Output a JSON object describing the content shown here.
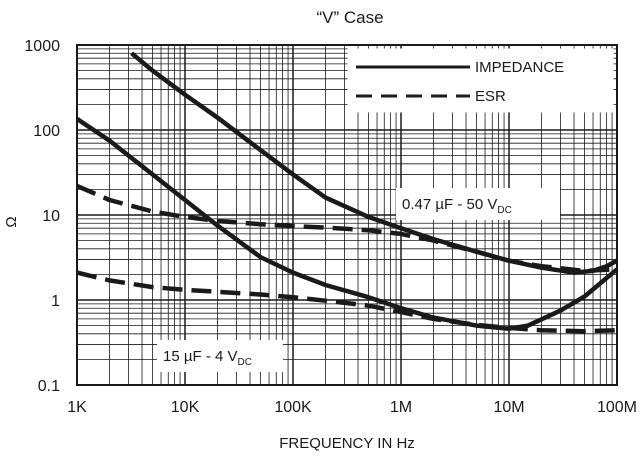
{
  "chart_data": {
    "type": "line",
    "title": "“V” Case",
    "xlabel": "FREQUENCY IN Hz",
    "ylabel": "Ω",
    "x_scale": "log",
    "y_scale": "log",
    "xlim": [
      1000,
      100000000
    ],
    "ylim": [
      0.1,
      1000
    ],
    "grid": true,
    "legend_position": "top-right",
    "x_ticks": [
      {
        "value": 1000,
        "label": "1K"
      },
      {
        "value": 10000,
        "label": "10K"
      },
      {
        "value": 100000,
        "label": "100K"
      },
      {
        "value": 1000000,
        "label": "1M"
      },
      {
        "value": 10000000,
        "label": "10M"
      },
      {
        "value": 100000000,
        "label": "100M"
      }
    ],
    "y_ticks": [
      {
        "value": 0.1,
        "label": "0.1"
      },
      {
        "value": 1,
        "label": "1"
      },
      {
        "value": 10,
        "label": "10"
      },
      {
        "value": 100,
        "label": "100"
      },
      {
        "value": 1000,
        "label": "1000"
      }
    ],
    "legend": [
      {
        "label": "IMPEDANCE",
        "style": "solid"
      },
      {
        "label": "ESR",
        "style": "dashed"
      }
    ],
    "annotations": [
      {
        "id": "ann_047",
        "main": "0.47 µF - 50 V",
        "sub": "DC"
      },
      {
        "id": "ann_15",
        "main": "15 µF - 4 V",
        "sub": "DC"
      }
    ],
    "series": [
      {
        "group": "ann_047",
        "kind": "IMPEDANCE",
        "style": "solid",
        "points": [
          [
            3200,
            800
          ],
          [
            5000,
            500
          ],
          [
            10000,
            260
          ],
          [
            20000,
            140
          ],
          [
            50000,
            58
          ],
          [
            100000,
            30
          ],
          [
            200000,
            16
          ],
          [
            500000,
            9.5
          ],
          [
            1000000,
            7
          ],
          [
            2000000,
            5.2
          ],
          [
            5000000,
            3.7
          ],
          [
            10000000,
            2.9
          ],
          [
            20000000,
            2.4
          ],
          [
            40000000,
            2.1
          ],
          [
            60000000,
            2.2
          ],
          [
            80000000,
            2.5
          ],
          [
            100000000,
            2.9
          ]
        ]
      },
      {
        "group": "ann_047",
        "kind": "ESR",
        "style": "dashed",
        "points": [
          [
            1000,
            22
          ],
          [
            2000,
            15
          ],
          [
            5000,
            11
          ],
          [
            10000,
            9.5
          ],
          [
            20000,
            8.5
          ],
          [
            50000,
            7.8
          ],
          [
            100000,
            7.4
          ],
          [
            200000,
            7.1
          ],
          [
            500000,
            6.6
          ],
          [
            1000000,
            6
          ],
          [
            2000000,
            5
          ],
          [
            5000000,
            3.7
          ],
          [
            10000000,
            2.9
          ],
          [
            20000000,
            2.5
          ],
          [
            50000000,
            2.2
          ],
          [
            100000000,
            2.3
          ]
        ]
      },
      {
        "group": "ann_15",
        "kind": "IMPEDANCE",
        "style": "solid",
        "points": [
          [
            1000,
            135
          ],
          [
            2000,
            75
          ],
          [
            5000,
            30
          ],
          [
            10000,
            15
          ],
          [
            20000,
            7.5
          ],
          [
            50000,
            3.2
          ],
          [
            100000,
            2.1
          ],
          [
            200000,
            1.5
          ],
          [
            500000,
            1.08
          ],
          [
            1000000,
            0.8
          ],
          [
            2000000,
            0.62
          ],
          [
            5000000,
            0.5
          ],
          [
            10000000,
            0.46
          ],
          [
            15000000,
            0.5
          ],
          [
            30000000,
            0.75
          ],
          [
            50000000,
            1.1
          ],
          [
            100000000,
            2.3
          ]
        ]
      },
      {
        "group": "ann_15",
        "kind": "ESR",
        "style": "dashed",
        "points": [
          [
            1000,
            2.1
          ],
          [
            2000,
            1.7
          ],
          [
            5000,
            1.42
          ],
          [
            10000,
            1.32
          ],
          [
            20000,
            1.25
          ],
          [
            50000,
            1.16
          ],
          [
            100000,
            1.08
          ],
          [
            200000,
            0.98
          ],
          [
            500000,
            0.86
          ],
          [
            1000000,
            0.72
          ],
          [
            2000000,
            0.6
          ],
          [
            5000000,
            0.51
          ],
          [
            10000000,
            0.47
          ],
          [
            20000000,
            0.44
          ],
          [
            50000000,
            0.43
          ],
          [
            100000000,
            0.44
          ]
        ]
      }
    ]
  }
}
